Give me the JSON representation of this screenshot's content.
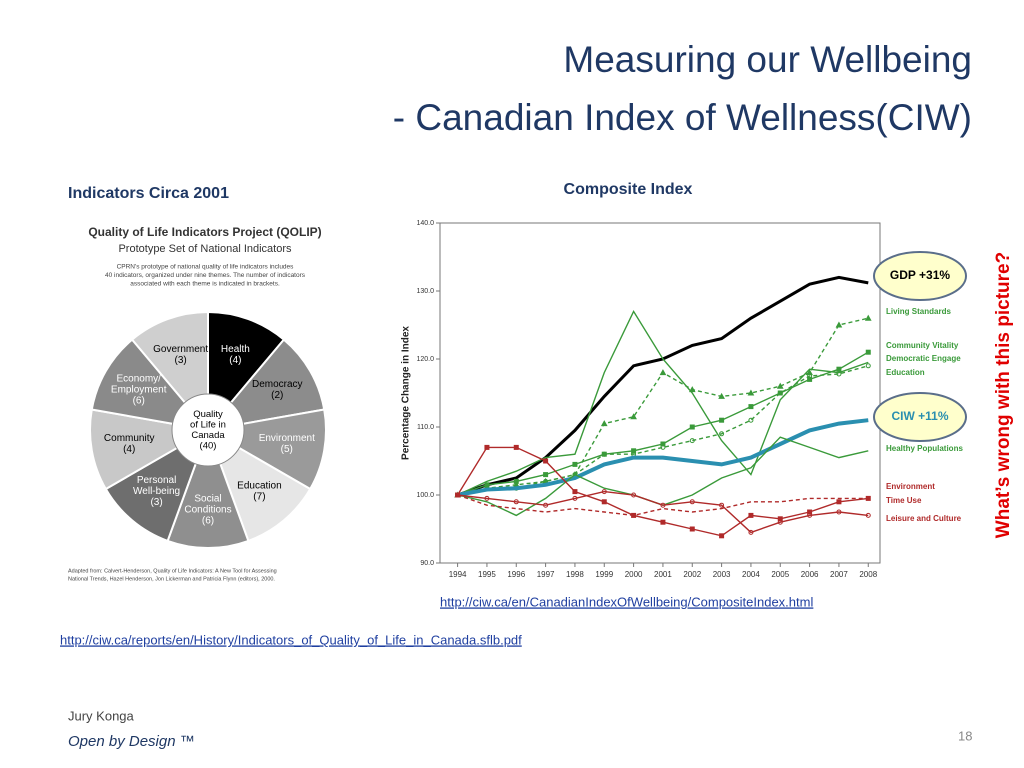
{
  "slide": {
    "title": [
      "Measuring our Wellbeing",
      "- Canadian Index of Wellness(CIW)"
    ],
    "left_heading": "Indicators Circa 2001",
    "side_note": "What’s wrong with this picture?",
    "link_composite": "http://ciw.ca/en/CanadianIndexOfWellbeing/CompositeIndex.html",
    "link_qolip": "http://ciw.ca/reports/en/History/Indicators_of_Quality_of_Life_in_Canada.sflb.pdf",
    "author": "Jury Konga",
    "tagline": "Open by Design ™",
    "page_number": "18"
  },
  "qolip": {
    "title": "Quality of Life Indicators Project (QOLIP)",
    "subtitle": "Prototype Set of National Indicators",
    "note": [
      "CPRN's prototype of national quality of life indicators includes",
      "40 indicators, organized under nine themes. The number of indicators",
      "associated with each theme is indicated in brackets."
    ],
    "center": [
      "Quality",
      "of Life in",
      "Canada",
      "(40)"
    ],
    "segments": [
      {
        "label": [
          "Health",
          "(4)"
        ],
        "color": "#000000",
        "text_color": "#ffffff"
      },
      {
        "label": [
          "Democracy",
          "(2)"
        ],
        "color": "#8c8c8c",
        "text_color": "#000000"
      },
      {
        "label": [
          "Environment",
          "(5)"
        ],
        "color": "#9a9a9a",
        "text_color": "#ffffff"
      },
      {
        "label": [
          "Education",
          "(7)"
        ],
        "color": "#e6e6e6",
        "text_color": "#000000"
      },
      {
        "label": [
          "Social",
          "Conditions",
          "(6)"
        ],
        "color": "#8f8f8f",
        "text_color": "#ffffff"
      },
      {
        "label": [
          "Personal",
          "Well-being",
          "(3)"
        ],
        "color": "#6e6e6e",
        "text_color": "#ffffff"
      },
      {
        "label": [
          "Community",
          "(4)"
        ],
        "color": "#c8c8c8",
        "text_color": "#000000"
      },
      {
        "label": [
          "Economy/",
          "Employment",
          "(6)"
        ],
        "color": "#8a8a8a",
        "text_color": "#ffffff"
      },
      {
        "label": [
          "Government",
          "(3)"
        ],
        "color": "#cfcfcf",
        "text_color": "#000000"
      }
    ],
    "source": [
      "Adapted from: Calvert-Henderson, Quality of Life Indicators: A New Tool for Assessing",
      "National Trends, Hazel Henderson, Jon Lickerman and Patricia Flynn (editors), 2000."
    ]
  },
  "chart_data": {
    "type": "line",
    "title": "Composite Index",
    "y_label": "Percentage Change in Index",
    "x": [
      1994,
      1995,
      1996,
      1997,
      1998,
      1999,
      2000,
      2001,
      2002,
      2003,
      2004,
      2005,
      2006,
      2007,
      2008
    ],
    "xlim": [
      1993.4,
      2008.4
    ],
    "xticks": [
      1994,
      1995,
      1996,
      1997,
      1998,
      1999,
      2000,
      2001,
      2002,
      2003,
      2004,
      2005,
      2006,
      2007,
      2008
    ],
    "ylim": [
      90,
      140
    ],
    "yticks": [
      {
        "value": 90,
        "label": "90.0"
      },
      {
        "value": 100,
        "label": "100.0"
      },
      {
        "value": 110,
        "label": "110.0"
      },
      {
        "value": 120,
        "label": "120.0"
      },
      {
        "value": 130,
        "label": "130.0"
      },
      {
        "value": 140,
        "label": "140.0"
      }
    ],
    "series": [
      {
        "color": "#000000",
        "width": 3,
        "values": [
          100,
          101.5,
          102.5,
          105.5,
          109.5,
          114.5,
          119,
          120,
          122,
          123,
          126,
          128.5,
          131,
          132,
          131.2
        ]
      },
      {
        "name": "Living Standards",
        "color": "#3a9a3a",
        "dash": true,
        "marker": "triangle",
        "values": [
          100,
          101,
          101.5,
          102,
          103,
          110.5,
          111.5,
          118,
          115.5,
          114.5,
          115,
          116,
          118,
          125,
          126
        ]
      },
      {
        "name": "Community Vitality",
        "color": "#3a9a3a",
        "marker": "square",
        "values": [
          100,
          101.5,
          102,
          103,
          104.5,
          106,
          106.5,
          107.5,
          110,
          111,
          113,
          115,
          117,
          118.5,
          121
        ]
      },
      {
        "name": "Democratic Engage",
        "color": "#3a9a3a",
        "values": [
          100,
          102,
          103.5,
          105.5,
          106,
          118,
          127,
          120,
          115,
          108,
          103,
          114,
          118.5,
          118,
          119.5
        ]
      },
      {
        "name": "Education",
        "color": "#3a9a3a",
        "dash": true,
        "marker": "circle",
        "values": [
          100,
          101,
          101,
          102,
          103,
          106,
          106,
          107,
          108,
          109,
          111,
          115,
          117.5,
          117.8,
          119
        ]
      },
      {
        "color": "#2a8fb0",
        "width": 4,
        "values": [
          100,
          100.8,
          101,
          101.5,
          102.5,
          104.5,
          105.5,
          105.5,
          105,
          104.5,
          105.5,
          107.5,
          109.5,
          110.5,
          111
        ]
      },
      {
        "name": "Healthy Populations",
        "color": "#3a9a3a",
        "values": [
          100,
          99,
          97,
          99.5,
          103,
          101,
          100,
          98.5,
          100,
          102.5,
          104,
          108.5,
          107,
          105.5,
          106.5
        ]
      },
      {
        "name": "Environment",
        "color": "#b02a2a",
        "marker": "square",
        "values": [
          100,
          107,
          107,
          105,
          100.5,
          99,
          97,
          96,
          95,
          94,
          97,
          96.5,
          97.5,
          99,
          99.5
        ]
      },
      {
        "name": "Time Use",
        "color": "#b02a2a",
        "dash": true,
        "values": [
          100,
          98.5,
          98,
          97.5,
          98,
          97.5,
          97,
          98,
          97.5,
          98,
          99,
          99,
          99.5,
          99.5,
          99.5
        ]
      },
      {
        "name": "Leisure and Culture",
        "color": "#b02a2a",
        "marker": "circle",
        "values": [
          100,
          99.5,
          99,
          98.5,
          99.5,
          100.5,
          100,
          98.5,
          99,
          98.5,
          94.5,
          96,
          97,
          97.5,
          97
        ]
      }
    ],
    "annotations": [
      {
        "text": "GDP +31%",
        "color": "#000000"
      },
      {
        "text": "CIW +11%",
        "color": "#2a8fb0"
      }
    ]
  }
}
